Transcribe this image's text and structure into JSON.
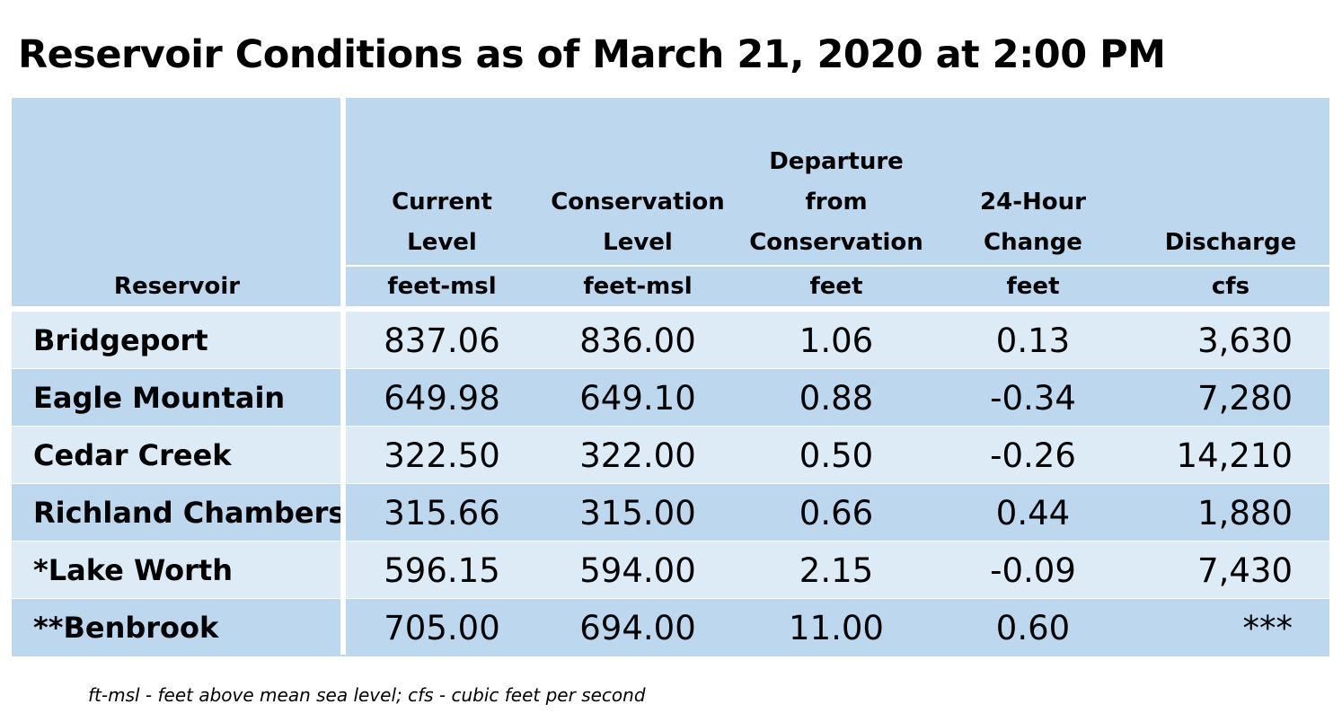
{
  "title": "Reservoir Conditions as of March 21, 2020 at 2:00 PM",
  "table": {
    "columns": [
      {
        "header": [
          "Reservoir"
        ],
        "unit": ""
      },
      {
        "header": [
          "Current",
          "Level"
        ],
        "unit": "feet-msl"
      },
      {
        "header": [
          "Conservation",
          "Level"
        ],
        "unit": "feet-msl"
      },
      {
        "header": [
          "Departure",
          "from",
          "Conservation"
        ],
        "unit": "feet"
      },
      {
        "header": [
          "24-Hour",
          "Change"
        ],
        "unit": "feet"
      },
      {
        "header": [
          "Discharge"
        ],
        "unit": "cfs"
      }
    ],
    "rows": [
      {
        "name": "Bridgeport",
        "current": "837.06",
        "conservation": "836.00",
        "departure": "1.06",
        "change": "0.13",
        "discharge": "3,630"
      },
      {
        "name": "Eagle Mountain",
        "current": "649.98",
        "conservation": "649.10",
        "departure": "0.88",
        "change": "-0.34",
        "discharge": "7,280"
      },
      {
        "name": "Cedar Creek",
        "current": "322.50",
        "conservation": "322.00",
        "departure": "0.50",
        "change": "-0.26",
        "discharge": "14,210"
      },
      {
        "name": "Richland Chambers",
        "current": "315.66",
        "conservation": "315.00",
        "departure": "0.66",
        "change": "0.44",
        "discharge": "1,880"
      },
      {
        "name": "*Lake Worth",
        "current": "596.15",
        "conservation": "594.00",
        "departure": "2.15",
        "change": "-0.09",
        "discharge": "7,430"
      },
      {
        "name": "**Benbrook",
        "current": "705.00",
        "conservation": "694.00",
        "departure": "11.00",
        "change": "0.60",
        "discharge": "***"
      }
    ]
  },
  "colors": {
    "header_bg": "#bdd7ee",
    "row_light": "#ddebf7",
    "row_dark": "#bdd7ee",
    "separator": "#ffffff"
  },
  "footnote": "ft-msl - feet above mean sea level; cfs - cubic feet per second"
}
